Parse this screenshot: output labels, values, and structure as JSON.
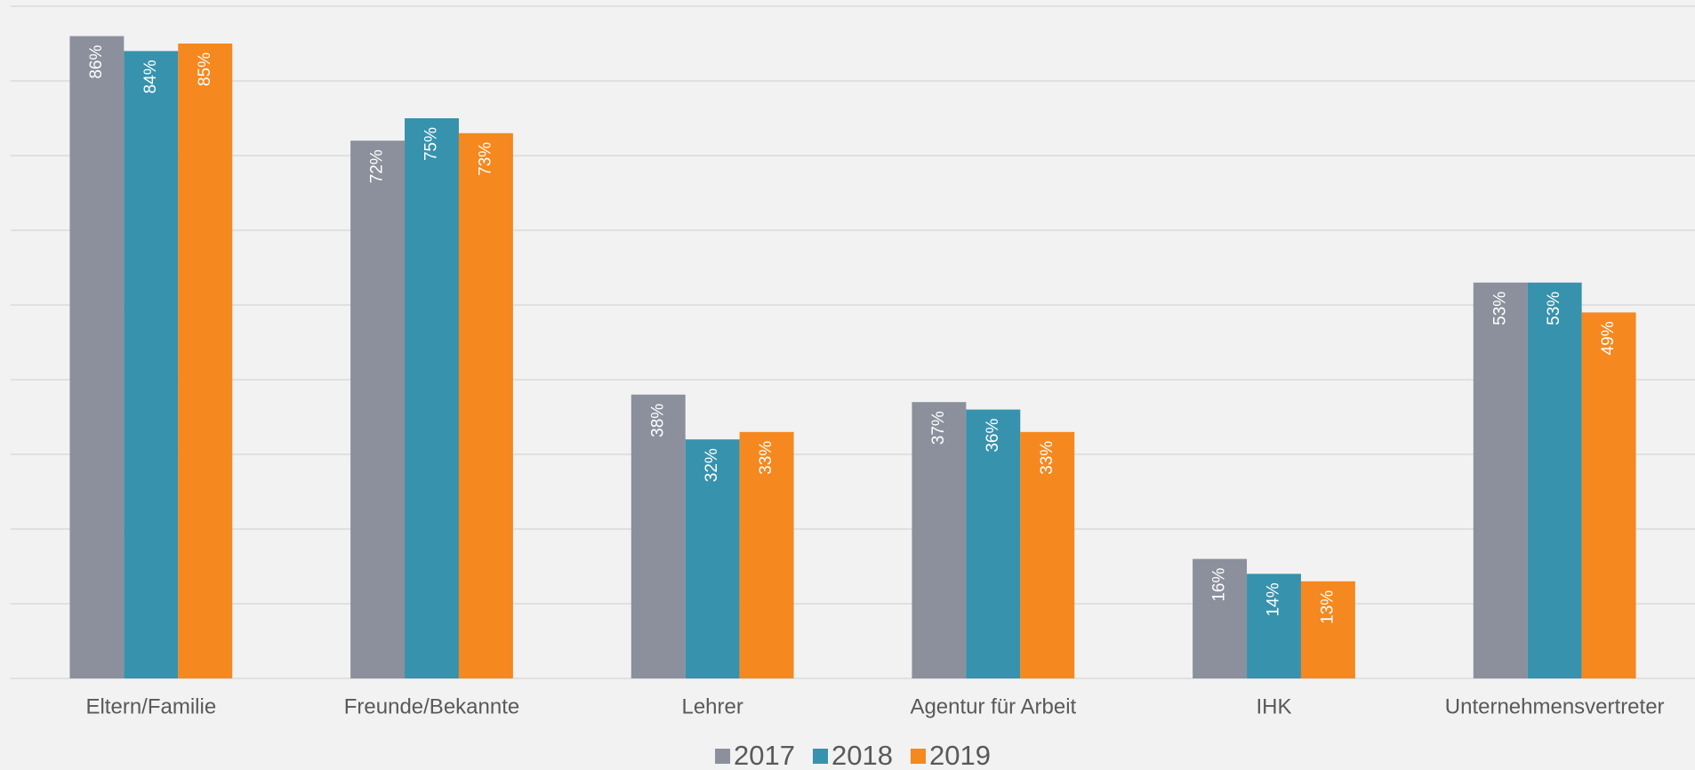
{
  "chart_data": {
    "type": "bar",
    "categories": [
      "Eltern/Familie",
      "Freunde/Bekannte",
      "Lehrer",
      "Agentur für Arbeit",
      "IHK",
      "Unternehmensvertreter"
    ],
    "series": [
      {
        "name": "2017",
        "color": "#8c909d",
        "values": [
          86,
          72,
          38,
          37,
          16,
          53
        ],
        "value_labels": [
          "86%",
          "72%",
          "38%",
          "37%",
          "16%",
          "53%"
        ]
      },
      {
        "name": "2018",
        "color": "#3792ad",
        "values": [
          84,
          75,
          32,
          36,
          14,
          53
        ],
        "value_labels": [
          "84%",
          "75%",
          "32%",
          "36%",
          "14%",
          "53%"
        ]
      },
      {
        "name": "2019",
        "color": "#f5881f",
        "values": [
          85,
          73,
          33,
          33,
          13,
          49
        ],
        "value_labels": [
          "85%",
          "73%",
          "33%",
          "33%",
          "13%",
          "49%"
        ]
      }
    ],
    "ylim": [
      0,
      90
    ],
    "yticks": [
      0,
      10,
      20,
      30,
      40,
      50,
      60,
      70,
      80,
      90
    ],
    "grid": true,
    "legend": "bottom"
  }
}
